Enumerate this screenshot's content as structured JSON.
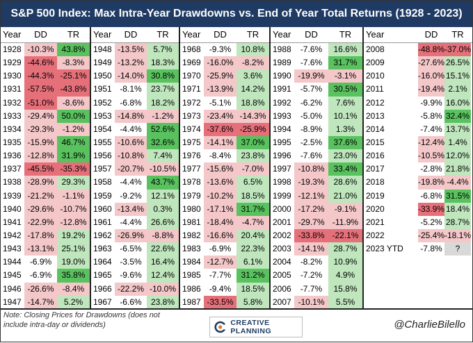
{
  "title": "S&P 500 Index: Max Intra-Year Drawdowns vs. End of Year Total Returns (1928 - 2023)",
  "column_headers": {
    "year": "Year",
    "dd": "DD",
    "tr": "TR"
  },
  "colors": {
    "header_bg": "#1f3b63",
    "neg": "#f4c7c9",
    "pos": "#bfe6bd",
    "neg_strong": "#e5707a",
    "pos_strong": "#59c25f",
    "blank": "#d9d9d9"
  },
  "chart_data": {
    "type": "table",
    "title": "S&P 500 Index: Max Intra-Year Drawdowns vs. End of Year Total Returns (1928 - 2023)",
    "columns": [
      "Year",
      "DD",
      "TR"
    ],
    "rows": [
      [
        "1928",
        "-10.3%",
        "43.8%"
      ],
      [
        "1929",
        "-44.6%",
        "-8.3%"
      ],
      [
        "1930",
        "-44.3%",
        "-25.1%"
      ],
      [
        "1931",
        "-57.5%",
        "-43.8%"
      ],
      [
        "1932",
        "-51.0%",
        "-8.6%"
      ],
      [
        "1933",
        "-29.4%",
        "50.0%"
      ],
      [
        "1934",
        "-29.3%",
        "-1.2%"
      ],
      [
        "1935",
        "-15.9%",
        "46.7%"
      ],
      [
        "1936",
        "-12.8%",
        "31.9%"
      ],
      [
        "1937",
        "-45.5%",
        "-35.3%"
      ],
      [
        "1938",
        "-28.9%",
        "29.3%"
      ],
      [
        "1939",
        "-21.2%",
        "-1.1%"
      ],
      [
        "1940",
        "-29.6%",
        "-10.7%"
      ],
      [
        "1941",
        "-22.9%",
        "-12.8%"
      ],
      [
        "1942",
        "-17.8%",
        "19.2%"
      ],
      [
        "1943",
        "-13.1%",
        "25.1%"
      ],
      [
        "1944",
        "-6.9%",
        "19.0%"
      ],
      [
        "1945",
        "-6.9%",
        "35.8%"
      ],
      [
        "1946",
        "-26.6%",
        "-8.4%"
      ],
      [
        "1947",
        "-14.7%",
        "5.2%"
      ],
      [
        "1948",
        "-13.5%",
        "5.7%"
      ],
      [
        "1949",
        "-13.2%",
        "18.3%"
      ],
      [
        "1950",
        "-14.0%",
        "30.8%"
      ],
      [
        "1951",
        "-8.1%",
        "23.7%"
      ],
      [
        "1952",
        "-6.8%",
        "18.2%"
      ],
      [
        "1953",
        "-14.8%",
        "-1.2%"
      ],
      [
        "1954",
        "-4.4%",
        "52.6%"
      ],
      [
        "1955",
        "-10.6%",
        "32.6%"
      ],
      [
        "1956",
        "-10.8%",
        "7.4%"
      ],
      [
        "1957",
        "-20.7%",
        "-10.5%"
      ],
      [
        "1958",
        "-4.4%",
        "43.7%"
      ],
      [
        "1959",
        "-9.2%",
        "12.1%"
      ],
      [
        "1960",
        "-13.4%",
        "0.3%"
      ],
      [
        "1961",
        "-4.4%",
        "26.6%"
      ],
      [
        "1962",
        "-26.9%",
        "-8.8%"
      ],
      [
        "1963",
        "-6.5%",
        "22.6%"
      ],
      [
        "1964",
        "-3.5%",
        "16.4%"
      ],
      [
        "1965",
        "-9.6%",
        "12.4%"
      ],
      [
        "1966",
        "-22.2%",
        "-10.0%"
      ],
      [
        "1967",
        "-6.6%",
        "23.8%"
      ],
      [
        "1968",
        "-9.3%",
        "10.8%"
      ],
      [
        "1969",
        "-16.0%",
        "-8.2%"
      ],
      [
        "1970",
        "-25.9%",
        "3.6%"
      ],
      [
        "1971",
        "-13.9%",
        "14.2%"
      ],
      [
        "1972",
        "-5.1%",
        "18.8%"
      ],
      [
        "1973",
        "-23.4%",
        "-14.3%"
      ],
      [
        "1974",
        "-37.6%",
        "-25.9%"
      ],
      [
        "1975",
        "-14.1%",
        "37.0%"
      ],
      [
        "1976",
        "-8.4%",
        "23.8%"
      ],
      [
        "1977",
        "-15.6%",
        "-7.0%"
      ],
      [
        "1978",
        "-13.6%",
        "6.5%"
      ],
      [
        "1979",
        "-10.2%",
        "18.5%"
      ],
      [
        "1980",
        "-17.1%",
        "31.7%"
      ],
      [
        "1981",
        "-18.4%",
        "-4.7%"
      ],
      [
        "1982",
        "-16.6%",
        "20.4%"
      ],
      [
        "1983",
        "-6.9%",
        "22.3%"
      ],
      [
        "1984",
        "-12.7%",
        "6.1%"
      ],
      [
        "1985",
        "-7.7%",
        "31.2%"
      ],
      [
        "1986",
        "-9.4%",
        "18.5%"
      ],
      [
        "1987",
        "-33.5%",
        "5.8%"
      ],
      [
        "1988",
        "-7.6%",
        "16.6%"
      ],
      [
        "1989",
        "-7.6%",
        "31.7%"
      ],
      [
        "1990",
        "-19.9%",
        "-3.1%"
      ],
      [
        "1991",
        "-5.7%",
        "30.5%"
      ],
      [
        "1992",
        "-6.2%",
        "7.6%"
      ],
      [
        "1993",
        "-5.0%",
        "10.1%"
      ],
      [
        "1994",
        "-8.9%",
        "1.3%"
      ],
      [
        "1995",
        "-2.5%",
        "37.6%"
      ],
      [
        "1996",
        "-7.6%",
        "23.0%"
      ],
      [
        "1997",
        "-10.8%",
        "33.4%"
      ],
      [
        "1998",
        "-19.3%",
        "28.6%"
      ],
      [
        "1999",
        "-12.1%",
        "21.0%"
      ],
      [
        "2000",
        "-17.2%",
        "-9.1%"
      ],
      [
        "2001",
        "-29.7%",
        "-11.9%"
      ],
      [
        "2002",
        "-33.8%",
        "-22.1%"
      ],
      [
        "2003",
        "-14.1%",
        "28.7%"
      ],
      [
        "2004",
        "-8.2%",
        "10.9%"
      ],
      [
        "2005",
        "-7.2%",
        "4.9%"
      ],
      [
        "2006",
        "-7.7%",
        "15.8%"
      ],
      [
        "2007",
        "-10.1%",
        "5.5%"
      ],
      [
        "2008",
        "-48.8%",
        "-37.0%"
      ],
      [
        "2009",
        "-27.6%",
        "26.5%"
      ],
      [
        "2010",
        "-16.0%",
        "15.1%"
      ],
      [
        "2011",
        "-19.4%",
        "2.1%"
      ],
      [
        "2012",
        "-9.9%",
        "16.0%"
      ],
      [
        "2013",
        "-5.8%",
        "32.4%"
      ],
      [
        "2014",
        "-7.4%",
        "13.7%"
      ],
      [
        "2015",
        "-12.4%",
        "1.4%"
      ],
      [
        "2016",
        "-10.5%",
        "12.0%"
      ],
      [
        "2017",
        "-2.8%",
        "21.8%"
      ],
      [
        "2018",
        "-19.8%",
        "-4.4%"
      ],
      [
        "2019",
        "-6.8%",
        "31.5%"
      ],
      [
        "2020",
        "-33.9%",
        "18.4%"
      ],
      [
        "2021",
        "-5.2%",
        "28.7%"
      ],
      [
        "2022",
        "-25.4%",
        "-18.1%"
      ],
      [
        "2023 YTD",
        "-7.8%",
        "?"
      ]
    ]
  },
  "footer": {
    "note": "Note: Closing Prices for Drawdowns (does not include intra-day or dividends)",
    "logo_icon": "creative-planning-logo-icon",
    "logo_text": "CREATIVE PLANNING",
    "handle": "@CharlieBilello"
  }
}
